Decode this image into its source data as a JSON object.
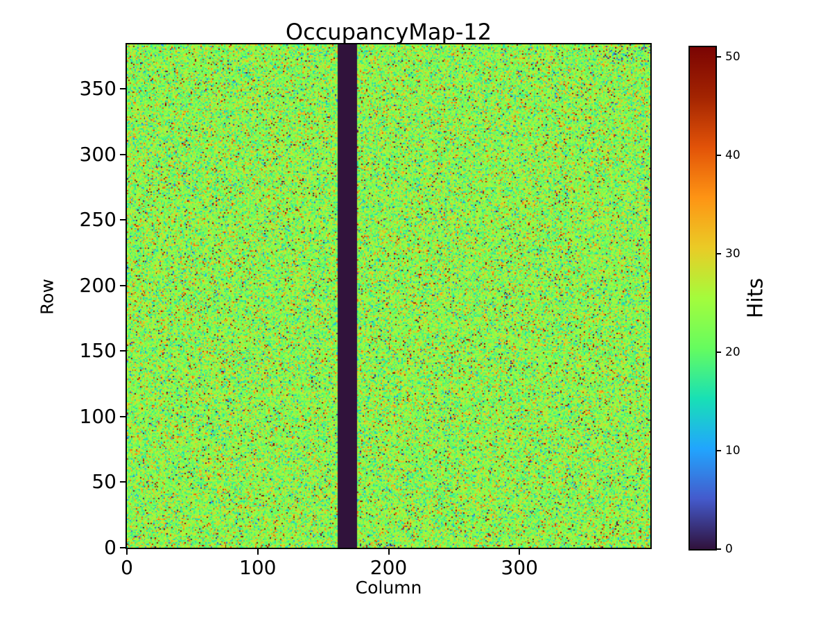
{
  "chart_data": {
    "type": "heatmap",
    "title": "OccupancyMap-12",
    "xlabel": "Column",
    "ylabel": "Row",
    "n_cols": 400,
    "n_rows": 384,
    "x_range": [
      0,
      400
    ],
    "y_range": [
      0,
      384
    ],
    "x_ticks": [
      0,
      100,
      200,
      300
    ],
    "y_ticks": [
      0,
      50,
      100,
      150,
      200,
      250,
      300,
      350
    ],
    "colorbar": {
      "label": "Hits",
      "min": 0,
      "max": 51,
      "ticks": [
        0,
        10,
        20,
        30,
        40,
        50
      ],
      "colormap": "turbo"
    },
    "values": {
      "mean": 23,
      "std": 4.2,
      "hot_fraction": 0.027,
      "orange_fraction": 0.055,
      "cold_fraction": 0.014,
      "black_fraction": 0.004,
      "seed": 12
    },
    "dead_column_band": {
      "col_start": 161,
      "col_end": 175,
      "value": 0
    },
    "noisy_corner": {
      "row_min": 372,
      "col_min": 364,
      "dead_fraction": 0.09
    },
    "bottom_edge_cluster": {
      "row_max": 2,
      "col_start": 176,
      "col_end": 210,
      "dead_fraction": 0.1
    },
    "colors": {
      "dead_band": "#30123b",
      "background": "#ffffff",
      "axis": "#000000",
      "text": "#000000"
    }
  }
}
